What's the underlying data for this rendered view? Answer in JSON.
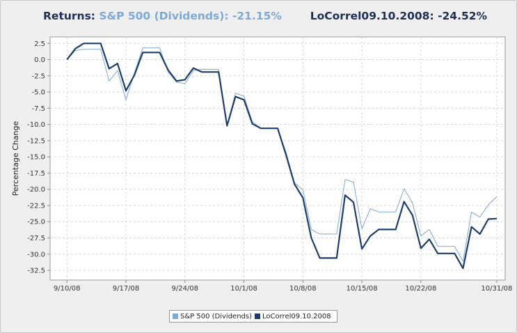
{
  "header": {
    "returns_label": "Returns:",
    "series1_label": "S&P 500 (Dividends):",
    "series1_return": "-21.15%",
    "series2_label": "LoCorrel09.10.2008:",
    "series2_return": "-24.52%"
  },
  "colors": {
    "series1": "#7ea9d4",
    "series2": "#1d3c6e",
    "grid": "#d8d8d8",
    "plot_bg": "#ffffff"
  },
  "chart_data": {
    "type": "line",
    "title": "",
    "xlabel": "",
    "ylabel": "Percentage Change",
    "ylim": [
      -34,
      3.5
    ],
    "y_ticks": [
      2.5,
      0.0,
      -2.5,
      -5.0,
      -7.5,
      -10.0,
      -12.5,
      -15.0,
      -17.5,
      -20.0,
      -22.5,
      -25.0,
      -27.5,
      -30.0,
      -32.5
    ],
    "x_range": [
      "2008-09-08",
      "2008-11-01"
    ],
    "x_ticks": [
      {
        "date": "2008-09-10",
        "label": "9/10/08"
      },
      {
        "date": "2008-09-17",
        "label": "9/17/08"
      },
      {
        "date": "2008-09-24",
        "label": "9/24/08"
      },
      {
        "date": "2008-10-01",
        "label": "10/1/08"
      },
      {
        "date": "2008-10-08",
        "label": "10/8/08"
      },
      {
        "date": "2008-10-15",
        "label": "10/15/08"
      },
      {
        "date": "2008-10-22",
        "label": "10/22/08"
      },
      {
        "date": "2008-10-31",
        "label": "10/31/08"
      }
    ],
    "grid": true,
    "legend_position": "bottom",
    "series": [
      {
        "name": "S&P 500 (Dividends)",
        "points": [
          [
            "2008-09-10",
            0.0
          ],
          [
            "2008-09-11",
            1.4
          ],
          [
            "2008-09-12",
            1.6
          ],
          [
            "2008-09-13",
            1.6
          ],
          [
            "2008-09-14",
            1.6
          ],
          [
            "2008-09-15",
            -3.3
          ],
          [
            "2008-09-16",
            -1.7
          ],
          [
            "2008-09-17",
            -6.2
          ],
          [
            "2008-09-18",
            -2.1
          ],
          [
            "2008-09-19",
            1.8
          ],
          [
            "2008-09-20",
            1.8
          ],
          [
            "2008-09-21",
            1.8
          ],
          [
            "2008-09-22",
            -1.9
          ],
          [
            "2008-09-23",
            -3.5
          ],
          [
            "2008-09-24",
            -3.7
          ],
          [
            "2008-09-25",
            -1.7
          ],
          [
            "2008-09-26",
            -1.5
          ],
          [
            "2008-09-27",
            -1.5
          ],
          [
            "2008-09-28",
            -1.5
          ],
          [
            "2008-09-29",
            -10.2
          ],
          [
            "2008-09-30",
            -5.2
          ],
          [
            "2008-10-01",
            -5.6
          ],
          [
            "2008-10-02",
            -9.6
          ],
          [
            "2008-10-03",
            -10.6
          ],
          [
            "2008-10-04",
            -10.6
          ],
          [
            "2008-10-05",
            -10.6
          ],
          [
            "2008-10-06",
            -14.3
          ],
          [
            "2008-10-07",
            -19.0
          ],
          [
            "2008-10-08",
            -20.1
          ],
          [
            "2008-10-09",
            -26.2
          ],
          [
            "2008-10-10",
            -26.9
          ],
          [
            "2008-10-11",
            -26.9
          ],
          [
            "2008-10-12",
            -26.9
          ],
          [
            "2008-10-13",
            -18.5
          ],
          [
            "2008-10-14",
            -18.9
          ],
          [
            "2008-10-15",
            -26.1
          ],
          [
            "2008-10-16",
            -23.0
          ],
          [
            "2008-10-17",
            -23.5
          ],
          [
            "2008-10-18",
            -23.5
          ],
          [
            "2008-10-19",
            -23.5
          ],
          [
            "2008-10-20",
            -19.9
          ],
          [
            "2008-10-21",
            -22.1
          ],
          [
            "2008-10-22",
            -27.2
          ],
          [
            "2008-10-23",
            -26.2
          ],
          [
            "2008-10-24",
            -28.8
          ],
          [
            "2008-10-25",
            -28.8
          ],
          [
            "2008-10-26",
            -28.8
          ],
          [
            "2008-10-27",
            -31.1
          ],
          [
            "2008-10-28",
            -23.5
          ],
          [
            "2008-10-29",
            -24.3
          ],
          [
            "2008-10-30",
            -22.4
          ],
          [
            "2008-10-31",
            -21.15
          ]
        ]
      },
      {
        "name": "LoCorrel09.10.2008",
        "points": [
          [
            "2008-09-10",
            0.0
          ],
          [
            "2008-09-11",
            1.7
          ],
          [
            "2008-09-12",
            2.5
          ],
          [
            "2008-09-13",
            2.5
          ],
          [
            "2008-09-14",
            2.5
          ],
          [
            "2008-09-15",
            -1.4
          ],
          [
            "2008-09-16",
            -0.6
          ],
          [
            "2008-09-17",
            -4.8
          ],
          [
            "2008-09-18",
            -2.4
          ],
          [
            "2008-09-19",
            1.1
          ],
          [
            "2008-09-20",
            1.1
          ],
          [
            "2008-09-21",
            1.1
          ],
          [
            "2008-09-22",
            -1.6
          ],
          [
            "2008-09-23",
            -3.3
          ],
          [
            "2008-09-24",
            -3.1
          ],
          [
            "2008-09-25",
            -1.3
          ],
          [
            "2008-09-26",
            -1.9
          ],
          [
            "2008-09-27",
            -1.9
          ],
          [
            "2008-09-28",
            -1.9
          ],
          [
            "2008-09-29",
            -10.2
          ],
          [
            "2008-09-30",
            -5.7
          ],
          [
            "2008-10-01",
            -6.2
          ],
          [
            "2008-10-02",
            -9.9
          ],
          [
            "2008-10-03",
            -10.6
          ],
          [
            "2008-10-04",
            -10.6
          ],
          [
            "2008-10-05",
            -10.6
          ],
          [
            "2008-10-06",
            -14.7
          ],
          [
            "2008-10-07",
            -19.2
          ],
          [
            "2008-10-08",
            -21.3
          ],
          [
            "2008-10-09",
            -27.5
          ],
          [
            "2008-10-10",
            -30.6
          ],
          [
            "2008-10-11",
            -30.6
          ],
          [
            "2008-10-12",
            -30.6
          ],
          [
            "2008-10-13",
            -20.9
          ],
          [
            "2008-10-14",
            -22.0
          ],
          [
            "2008-10-15",
            -29.2
          ],
          [
            "2008-10-16",
            -27.2
          ],
          [
            "2008-10-17",
            -26.2
          ],
          [
            "2008-10-18",
            -26.2
          ],
          [
            "2008-10-19",
            -26.2
          ],
          [
            "2008-10-20",
            -21.9
          ],
          [
            "2008-10-21",
            -24.0
          ],
          [
            "2008-10-22",
            -29.1
          ],
          [
            "2008-10-23",
            -27.7
          ],
          [
            "2008-10-24",
            -29.9
          ],
          [
            "2008-10-25",
            -29.9
          ],
          [
            "2008-10-26",
            -29.9
          ],
          [
            "2008-10-27",
            -32.2
          ],
          [
            "2008-10-28",
            -25.8
          ],
          [
            "2008-10-29",
            -26.9
          ],
          [
            "2008-10-30",
            -24.6
          ],
          [
            "2008-10-31",
            -24.52
          ]
        ]
      }
    ]
  }
}
